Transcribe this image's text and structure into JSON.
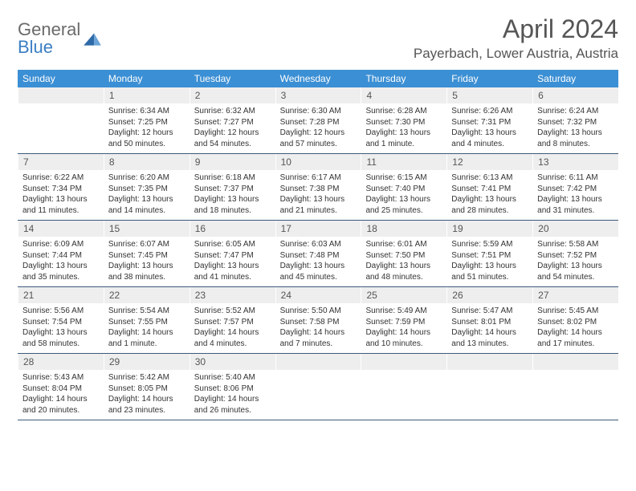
{
  "logo": {
    "top": "General",
    "bottom": "Blue"
  },
  "title": "April 2024",
  "location": "Payerbach, Lower Austria, Austria",
  "colors": {
    "header_bg": "#3b8fd4",
    "header_text": "#ffffff",
    "daynum_bg": "#eeeeee",
    "week_border": "#3b5a7a",
    "logo_gray": "#6a6a6a",
    "logo_blue": "#3b7fc4"
  },
  "dayHeaders": [
    "Sunday",
    "Monday",
    "Tuesday",
    "Wednesday",
    "Thursday",
    "Friday",
    "Saturday"
  ],
  "weeks": [
    [
      {
        "n": "",
        "sun": "",
        "set": "",
        "day": ""
      },
      {
        "n": "1",
        "sun": "Sunrise: 6:34 AM",
        "set": "Sunset: 7:25 PM",
        "day": "Daylight: 12 hours and 50 minutes."
      },
      {
        "n": "2",
        "sun": "Sunrise: 6:32 AM",
        "set": "Sunset: 7:27 PM",
        "day": "Daylight: 12 hours and 54 minutes."
      },
      {
        "n": "3",
        "sun": "Sunrise: 6:30 AM",
        "set": "Sunset: 7:28 PM",
        "day": "Daylight: 12 hours and 57 minutes."
      },
      {
        "n": "4",
        "sun": "Sunrise: 6:28 AM",
        "set": "Sunset: 7:30 PM",
        "day": "Daylight: 13 hours and 1 minute."
      },
      {
        "n": "5",
        "sun": "Sunrise: 6:26 AM",
        "set": "Sunset: 7:31 PM",
        "day": "Daylight: 13 hours and 4 minutes."
      },
      {
        "n": "6",
        "sun": "Sunrise: 6:24 AM",
        "set": "Sunset: 7:32 PM",
        "day": "Daylight: 13 hours and 8 minutes."
      }
    ],
    [
      {
        "n": "7",
        "sun": "Sunrise: 6:22 AM",
        "set": "Sunset: 7:34 PM",
        "day": "Daylight: 13 hours and 11 minutes."
      },
      {
        "n": "8",
        "sun": "Sunrise: 6:20 AM",
        "set": "Sunset: 7:35 PM",
        "day": "Daylight: 13 hours and 14 minutes."
      },
      {
        "n": "9",
        "sun": "Sunrise: 6:18 AM",
        "set": "Sunset: 7:37 PM",
        "day": "Daylight: 13 hours and 18 minutes."
      },
      {
        "n": "10",
        "sun": "Sunrise: 6:17 AM",
        "set": "Sunset: 7:38 PM",
        "day": "Daylight: 13 hours and 21 minutes."
      },
      {
        "n": "11",
        "sun": "Sunrise: 6:15 AM",
        "set": "Sunset: 7:40 PM",
        "day": "Daylight: 13 hours and 25 minutes."
      },
      {
        "n": "12",
        "sun": "Sunrise: 6:13 AM",
        "set": "Sunset: 7:41 PM",
        "day": "Daylight: 13 hours and 28 minutes."
      },
      {
        "n": "13",
        "sun": "Sunrise: 6:11 AM",
        "set": "Sunset: 7:42 PM",
        "day": "Daylight: 13 hours and 31 minutes."
      }
    ],
    [
      {
        "n": "14",
        "sun": "Sunrise: 6:09 AM",
        "set": "Sunset: 7:44 PM",
        "day": "Daylight: 13 hours and 35 minutes."
      },
      {
        "n": "15",
        "sun": "Sunrise: 6:07 AM",
        "set": "Sunset: 7:45 PM",
        "day": "Daylight: 13 hours and 38 minutes."
      },
      {
        "n": "16",
        "sun": "Sunrise: 6:05 AM",
        "set": "Sunset: 7:47 PM",
        "day": "Daylight: 13 hours and 41 minutes."
      },
      {
        "n": "17",
        "sun": "Sunrise: 6:03 AM",
        "set": "Sunset: 7:48 PM",
        "day": "Daylight: 13 hours and 45 minutes."
      },
      {
        "n": "18",
        "sun": "Sunrise: 6:01 AM",
        "set": "Sunset: 7:50 PM",
        "day": "Daylight: 13 hours and 48 minutes."
      },
      {
        "n": "19",
        "sun": "Sunrise: 5:59 AM",
        "set": "Sunset: 7:51 PM",
        "day": "Daylight: 13 hours and 51 minutes."
      },
      {
        "n": "20",
        "sun": "Sunrise: 5:58 AM",
        "set": "Sunset: 7:52 PM",
        "day": "Daylight: 13 hours and 54 minutes."
      }
    ],
    [
      {
        "n": "21",
        "sun": "Sunrise: 5:56 AM",
        "set": "Sunset: 7:54 PM",
        "day": "Daylight: 13 hours and 58 minutes."
      },
      {
        "n": "22",
        "sun": "Sunrise: 5:54 AM",
        "set": "Sunset: 7:55 PM",
        "day": "Daylight: 14 hours and 1 minute."
      },
      {
        "n": "23",
        "sun": "Sunrise: 5:52 AM",
        "set": "Sunset: 7:57 PM",
        "day": "Daylight: 14 hours and 4 minutes."
      },
      {
        "n": "24",
        "sun": "Sunrise: 5:50 AM",
        "set": "Sunset: 7:58 PM",
        "day": "Daylight: 14 hours and 7 minutes."
      },
      {
        "n": "25",
        "sun": "Sunrise: 5:49 AM",
        "set": "Sunset: 7:59 PM",
        "day": "Daylight: 14 hours and 10 minutes."
      },
      {
        "n": "26",
        "sun": "Sunrise: 5:47 AM",
        "set": "Sunset: 8:01 PM",
        "day": "Daylight: 14 hours and 13 minutes."
      },
      {
        "n": "27",
        "sun": "Sunrise: 5:45 AM",
        "set": "Sunset: 8:02 PM",
        "day": "Daylight: 14 hours and 17 minutes."
      }
    ],
    [
      {
        "n": "28",
        "sun": "Sunrise: 5:43 AM",
        "set": "Sunset: 8:04 PM",
        "day": "Daylight: 14 hours and 20 minutes."
      },
      {
        "n": "29",
        "sun": "Sunrise: 5:42 AM",
        "set": "Sunset: 8:05 PM",
        "day": "Daylight: 14 hours and 23 minutes."
      },
      {
        "n": "30",
        "sun": "Sunrise: 5:40 AM",
        "set": "Sunset: 8:06 PM",
        "day": "Daylight: 14 hours and 26 minutes."
      },
      {
        "n": "",
        "sun": "",
        "set": "",
        "day": ""
      },
      {
        "n": "",
        "sun": "",
        "set": "",
        "day": ""
      },
      {
        "n": "",
        "sun": "",
        "set": "",
        "day": ""
      },
      {
        "n": "",
        "sun": "",
        "set": "",
        "day": ""
      }
    ]
  ]
}
